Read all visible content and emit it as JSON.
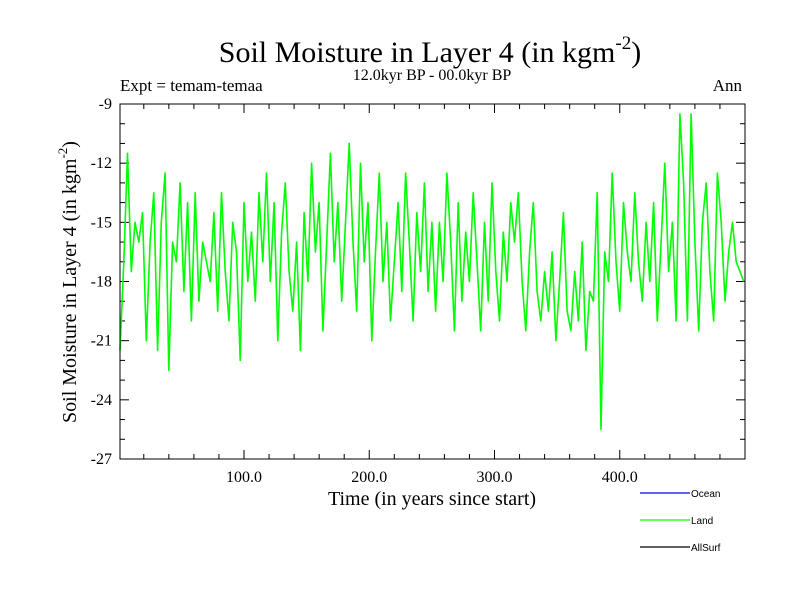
{
  "chart_data": {
    "type": "line",
    "title": "Soil Moisture in Layer 4 (in kgm",
    "title_sup": "-2",
    "title_close": ")",
    "subtitle": "12.0kyr BP - 00.0kyr BP",
    "left_label": "Expt = temam-temaa",
    "right_label": "Ann",
    "xlabel": "Time (in years since start)",
    "ylabel": "Soil Moisture in Layer 4 (in kgm",
    "ylabel_sup": "-2",
    "ylabel_close": ")",
    "xlim": [
      1,
      500
    ],
    "ylim": [
      -27,
      -9
    ],
    "xticks": [
      100,
      200,
      300,
      400
    ],
    "xtick_labels": [
      "100.0",
      "200.0",
      "300.0",
      "400.0"
    ],
    "yticks": [
      -9,
      -12,
      -15,
      -18,
      -21,
      -24,
      -27
    ],
    "ytick_labels": [
      "-9",
      "-12",
      "-15",
      "-18",
      "-21",
      "-24",
      "-27"
    ],
    "legend": [
      {
        "name": "Ocean",
        "color": "#0000ff"
      },
      {
        "name": "Land",
        "color": "#00ff00"
      },
      {
        "name": "AllSurf",
        "color": "#000000"
      }
    ],
    "series": [
      {
        "name": "Land",
        "color": "#00ff00",
        "x": [
          1,
          4,
          7,
          10,
          13,
          16,
          19,
          22,
          25,
          28,
          31,
          34,
          37,
          40,
          43,
          46,
          49,
          52,
          55,
          58,
          61,
          64,
          67,
          70,
          73,
          76,
          79,
          82,
          85,
          88,
          91,
          94,
          97,
          100,
          103,
          106,
          109,
          112,
          115,
          118,
          121,
          124,
          127,
          130,
          133,
          136,
          139,
          142,
          145,
          148,
          151,
          154,
          157,
          160,
          163,
          166,
          169,
          172,
          175,
          178,
          181,
          184,
          187,
          190,
          193,
          196,
          199,
          202,
          205,
          208,
          211,
          214,
          217,
          220,
          223,
          226,
          229,
          232,
          235,
          238,
          241,
          244,
          247,
          250,
          253,
          256,
          259,
          262,
          265,
          268,
          271,
          274,
          277,
          280,
          283,
          286,
          289,
          292,
          295,
          298,
          301,
          304,
          307,
          310,
          313,
          316,
          319,
          322,
          325,
          328,
          331,
          334,
          337,
          340,
          343,
          346,
          349,
          352,
          355,
          358,
          361,
          364,
          367,
          370,
          373,
          376,
          379,
          382,
          385,
          388,
          391,
          394,
          397,
          400,
          403,
          406,
          409,
          412,
          415,
          418,
          421,
          424,
          427,
          430,
          433,
          436,
          439,
          442,
          445,
          448,
          451,
          454,
          457,
          460,
          463,
          466,
          469,
          472,
          475,
          478,
          481,
          484,
          487,
          490,
          493,
          496,
          499
        ],
        "values": [
          -21.5,
          -17,
          -11.5,
          -17.5,
          -15,
          -16,
          -14.5,
          -21,
          -16,
          -13.5,
          -21.5,
          -15,
          -12.5,
          -22.5,
          -16,
          -17,
          -13,
          -18.5,
          -14,
          -20,
          -13.5,
          -19,
          -16,
          -17,
          -18,
          -14.5,
          -19.5,
          -13.5,
          -17.5,
          -20,
          -15,
          -16.5,
          -22,
          -14,
          -18,
          -15.5,
          -19,
          -13.5,
          -17,
          -12.5,
          -18,
          -14,
          -21,
          -15.5,
          -13,
          -17.5,
          -19.5,
          -16,
          -21.5,
          -14.5,
          -18,
          -12,
          -16.5,
          -14,
          -20.5,
          -16,
          -11.5,
          -17,
          -14,
          -19,
          -15,
          -11,
          -16,
          -19.5,
          -12,
          -17,
          -14,
          -21,
          -16.5,
          -12.5,
          -18,
          -15,
          -20,
          -17,
          -14,
          -18.5,
          -12.5,
          -16,
          -20,
          -14.5,
          -17.5,
          -13,
          -18.5,
          -15,
          -19.5,
          -15,
          -18,
          -12.5,
          -16,
          -20.5,
          -14,
          -19,
          -15.5,
          -18,
          -13.5,
          -17,
          -20.5,
          -15,
          -19,
          -13,
          -17.5,
          -20,
          -15.5,
          -18,
          -14,
          -16,
          -13.5,
          -18,
          -20.5,
          -16.5,
          -14,
          -18.5,
          -20,
          -17.5,
          -19.5,
          -16.5,
          -21,
          -18,
          -14.5,
          -19.5,
          -20.5,
          -17.5,
          -20,
          -16,
          -21.5,
          -18.5,
          -19,
          -13.5,
          -25.5,
          -16.5,
          -18,
          -12.5,
          -17,
          -19.5,
          -14,
          -16.5,
          -18,
          -13.5,
          -17,
          -19,
          -15,
          -18,
          -14,
          -20,
          -16,
          -12,
          -17.5,
          -15,
          -20,
          -9.5,
          -13,
          -20,
          -9.5,
          -16,
          -20.5,
          -15,
          -13,
          -17.5,
          -20,
          -12.5,
          -15,
          -19,
          -16.5,
          -15,
          -17,
          -17.5,
          -18
        ]
      }
    ]
  }
}
